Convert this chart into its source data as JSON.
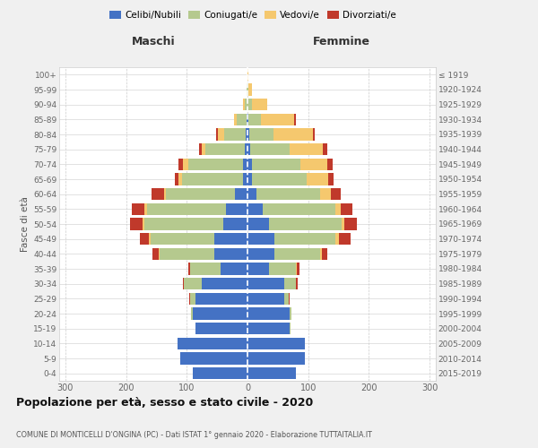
{
  "age_groups": [
    "0-4",
    "5-9",
    "10-14",
    "15-19",
    "20-24",
    "25-29",
    "30-34",
    "35-39",
    "40-44",
    "45-49",
    "50-54",
    "55-59",
    "60-64",
    "65-69",
    "70-74",
    "75-79",
    "80-84",
    "85-89",
    "90-94",
    "95-99",
    "100+"
  ],
  "birth_years": [
    "2015-2019",
    "2010-2014",
    "2005-2009",
    "2000-2004",
    "1995-1999",
    "1990-1994",
    "1985-1989",
    "1980-1984",
    "1975-1979",
    "1970-1974",
    "1965-1969",
    "1960-1964",
    "1955-1959",
    "1950-1954",
    "1945-1949",
    "1940-1944",
    "1935-1939",
    "1930-1934",
    "1925-1929",
    "1920-1924",
    "≤ 1919"
  ],
  "maschi": {
    "celibi": [
      90,
      110,
      115,
      85,
      90,
      85,
      75,
      45,
      55,
      55,
      40,
      35,
      20,
      8,
      8,
      5,
      3,
      2,
      0,
      0,
      0
    ],
    "coniugati": [
      0,
      0,
      0,
      1,
      3,
      10,
      30,
      50,
      90,
      105,
      130,
      130,
      115,
      100,
      90,
      65,
      35,
      15,
      5,
      2,
      0
    ],
    "vedovi": [
      0,
      0,
      0,
      0,
      0,
      0,
      0,
      0,
      1,
      2,
      3,
      5,
      3,
      5,
      8,
      5,
      10,
      5,
      3,
      0,
      0
    ],
    "divorziati": [
      0,
      0,
      0,
      0,
      0,
      1,
      2,
      3,
      10,
      15,
      20,
      20,
      20,
      7,
      7,
      5,
      3,
      0,
      0,
      0,
      0
    ]
  },
  "femmine": {
    "nubili": [
      80,
      95,
      95,
      70,
      70,
      60,
      60,
      35,
      45,
      45,
      35,
      25,
      15,
      8,
      7,
      4,
      3,
      2,
      0,
      0,
      0
    ],
    "coniugate": [
      0,
      0,
      0,
      1,
      3,
      8,
      20,
      45,
      75,
      100,
      120,
      120,
      105,
      90,
      80,
      65,
      40,
      20,
      8,
      2,
      0
    ],
    "vedove": [
      0,
      0,
      0,
      0,
      0,
      0,
      0,
      1,
      2,
      5,
      5,
      8,
      18,
      35,
      45,
      55,
      65,
      55,
      25,
      5,
      2
    ],
    "divorziate": [
      0,
      0,
      0,
      0,
      0,
      1,
      3,
      5,
      10,
      20,
      20,
      20,
      15,
      8,
      8,
      8,
      3,
      2,
      0,
      0,
      0
    ]
  },
  "colors": {
    "celibi": "#4472c4",
    "coniugati": "#b5c98e",
    "vedovi": "#f5c86e",
    "divorziati": "#c0392b"
  },
  "xlim": 310,
  "title": "Popolazione per età, sesso e stato civile - 2020",
  "subtitle": "COMUNE DI MONTICELLI D'ONGINA (PC) - Dati ISTAT 1° gennaio 2020 - Elaborazione TUTTAITALIA.IT",
  "xlabel_left": "Maschi",
  "xlabel_right": "Femmine",
  "ylabel_left": "Fasce di età",
  "bg_color": "#f0f0f0",
  "plot_bg_color": "#ffffff"
}
